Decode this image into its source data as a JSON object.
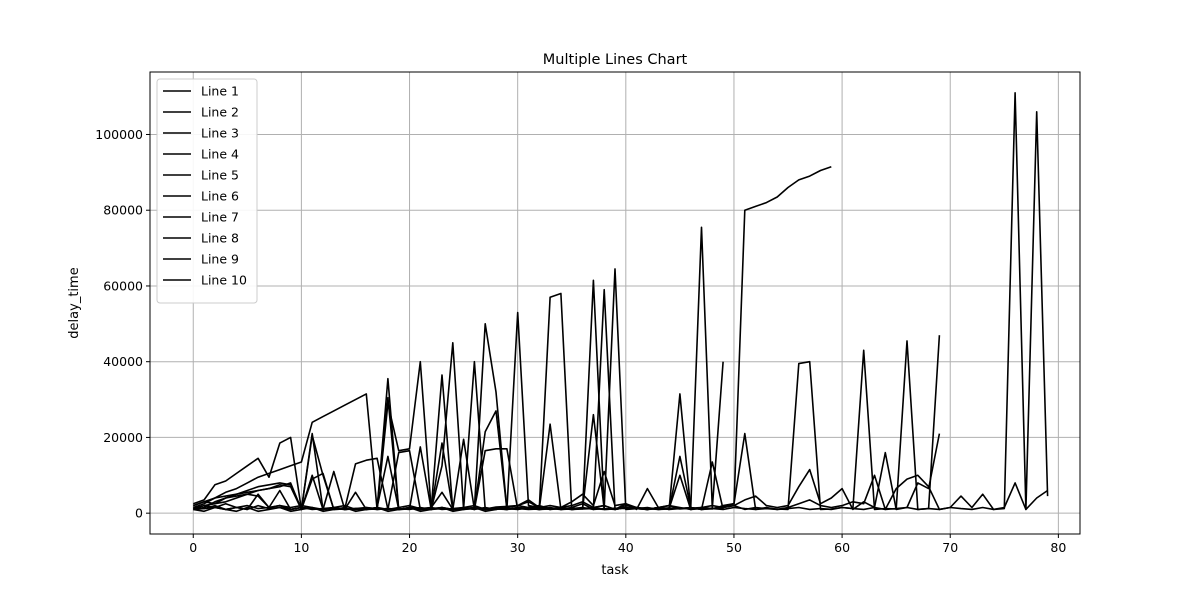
{
  "chart_data": {
    "type": "line",
    "title": "Multiple Lines Chart",
    "xlabel": "task",
    "ylabel": "delay_time",
    "xlim": [
      -4,
      82
    ],
    "ylim": [
      -5500,
      116500
    ],
    "xticks": [
      0,
      10,
      20,
      30,
      40,
      50,
      60,
      70,
      80
    ],
    "yticks": [
      0,
      20000,
      40000,
      60000,
      80000,
      100000
    ],
    "grid": true,
    "legend_position": "top-left",
    "line_color": "#000000",
    "series": [
      {
        "name": "Line 1",
        "x": [
          0,
          1,
          2,
          3,
          4,
          5,
          6,
          7,
          8,
          9,
          10,
          11,
          12,
          13,
          14,
          15,
          16,
          17,
          18,
          19,
          20,
          21,
          22,
          23,
          24,
          25,
          26,
          27,
          28,
          29,
          30,
          31,
          32,
          33,
          34,
          35,
          36,
          37,
          38,
          39,
          40,
          41,
          42,
          43,
          44,
          45,
          46,
          47,
          48,
          49,
          50,
          51,
          52,
          53,
          54,
          55,
          56,
          57,
          58,
          59
        ],
        "y": [
          1500,
          2500,
          4000,
          5500,
          6500,
          8000,
          9500,
          10500,
          11500,
          12500,
          13500,
          24000,
          25500,
          27000,
          28500,
          30000,
          31500,
          1000,
          1200,
          1000,
          1100,
          1300,
          1200,
          1500,
          1000,
          1200,
          1400,
          1100,
          1600,
          1800,
          2000,
          1500,
          1300,
          57000,
          58000,
          1000,
          1200,
          1400,
          1100,
          1300,
          1200,
          1500,
          1000,
          1200,
          1400,
          1100,
          1300,
          1500,
          1200,
          1700,
          2500,
          80000,
          81000,
          82000,
          83500,
          86000,
          88000,
          89000,
          90500,
          91500
        ]
      },
      {
        "name": "Line 2",
        "x": [
          0,
          1,
          2,
          3,
          4,
          5,
          6,
          7,
          8,
          9,
          10,
          11,
          12,
          13,
          14,
          15,
          16,
          17,
          18,
          19,
          20,
          21,
          22,
          23,
          24,
          25,
          26,
          27,
          28,
          29,
          30,
          31,
          32,
          33,
          34,
          35,
          36,
          37,
          38,
          39,
          40,
          41,
          42,
          43,
          44,
          45,
          46,
          47,
          48,
          49
        ],
        "y": [
          2500,
          3500,
          7500,
          8500,
          10500,
          12500,
          14500,
          9500,
          18500,
          20000,
          1000,
          20500,
          10000,
          1000,
          1100,
          13000,
          14000,
          14500,
          1000,
          16000,
          16500,
          1000,
          1200,
          36500,
          1000,
          1200,
          40000,
          1000,
          1200,
          1000,
          53000,
          2000,
          1500,
          1000,
          1200,
          1400,
          1100,
          61500,
          1300,
          64500,
          1000,
          1200,
          1500,
          1000,
          1200,
          1400,
          1100,
          75500,
          1300,
          40000
        ]
      },
      {
        "name": "Line 3",
        "x": [
          0,
          1,
          2,
          3,
          4,
          5,
          6,
          7,
          8,
          9,
          10,
          11,
          12,
          13,
          14,
          15,
          16,
          17,
          18,
          19,
          20,
          21,
          22,
          23,
          24,
          25,
          26,
          27,
          28,
          29
        ],
        "y": [
          2000,
          3000,
          4000,
          4500,
          5000,
          5500,
          6000,
          6500,
          7500,
          7000,
          1000,
          9000,
          10500,
          1000,
          1100,
          1000,
          1200,
          1000,
          29000,
          16500,
          17000,
          40000,
          1000,
          12500,
          45000,
          1000,
          1200,
          50000,
          32000,
          1000
        ]
      },
      {
        "name": "Line 4",
        "x": [
          0,
          1,
          2,
          3,
          4,
          5,
          6,
          7,
          8,
          9,
          10,
          11,
          12,
          13,
          14,
          15,
          16,
          17,
          18,
          19,
          20,
          21,
          22,
          23,
          24,
          25,
          26,
          27,
          28,
          29,
          30,
          31,
          32,
          33,
          34,
          35,
          36,
          37,
          38,
          39,
          40,
          41,
          42,
          43,
          44,
          45,
          46,
          47,
          48,
          49,
          50,
          51,
          52,
          53,
          54,
          55,
          56,
          57,
          58,
          59,
          60,
          61,
          62,
          63,
          64,
          65,
          66,
          67,
          68,
          69
        ],
        "y": [
          1000,
          1500,
          3000,
          4000,
          5000,
          6000,
          7000,
          7500,
          8000,
          7500,
          1000,
          10000,
          1000,
          11000,
          1000,
          1200,
          1000,
          1100,
          35500,
          1000,
          1200,
          1000,
          1100,
          1200,
          1000,
          1100,
          1200,
          1000,
          1100,
          1000,
          1500,
          1200,
          1000,
          1100,
          1200,
          1000,
          1100,
          1200,
          1000,
          1100,
          2000,
          1500,
          1200,
          1000,
          1100,
          31500,
          1000,
          1200,
          1100,
          2000,
          2500,
          21000,
          1000,
          1200,
          1100,
          1000,
          39500,
          40000,
          1000,
          1100,
          1500,
          1200,
          43000,
          1000,
          1200,
          1100,
          45500,
          1000,
          1200,
          47000
        ]
      },
      {
        "name": "Line 5",
        "x": [
          0,
          1,
          2,
          3,
          4,
          5,
          6,
          7,
          8,
          9,
          10,
          11,
          12,
          13,
          14,
          15,
          16,
          17,
          18,
          19,
          20,
          21,
          22,
          23,
          24,
          25,
          26,
          27,
          28,
          29,
          30,
          31,
          32,
          33,
          34,
          35,
          36,
          37,
          38,
          39
        ],
        "y": [
          1200,
          2000,
          2500,
          3000,
          4000,
          5000,
          6000,
          6500,
          7000,
          8000,
          1000,
          21000,
          1000,
          1200,
          1000,
          1100,
          1000,
          1200,
          30500,
          1000,
          1100,
          17500,
          1000,
          18500,
          1000,
          19500,
          1000,
          21500,
          27000,
          1000,
          1200,
          1000,
          1100,
          23500,
          1000,
          1100,
          1200,
          26000,
          1000,
          1100
        ]
      },
      {
        "name": "Line 6",
        "x": [
          0,
          1,
          2,
          3,
          4,
          5,
          6,
          7,
          8,
          9,
          10,
          11,
          12,
          13,
          14,
          15,
          16,
          17,
          18,
          19,
          20,
          21,
          22,
          23,
          24,
          25,
          26,
          27,
          28,
          29,
          30,
          31,
          32,
          33,
          34,
          35,
          36,
          37,
          38,
          39,
          40,
          41,
          42,
          43,
          44,
          45,
          46,
          47,
          48,
          49,
          50,
          51,
          52,
          53,
          54,
          55,
          56,
          57,
          58,
          59,
          60,
          61,
          62,
          63,
          64,
          65,
          66,
          67,
          68,
          69,
          70,
          71,
          72,
          73,
          74,
          75,
          76,
          77,
          78,
          79
        ],
        "y": [
          1500,
          1200,
          2000,
          1000,
          1500,
          1000,
          2000,
          1200,
          1500,
          1000,
          1500,
          1200,
          1000,
          1500,
          1000,
          1200,
          1500,
          1000,
          1200,
          1000,
          1500,
          1200,
          1000,
          1500,
          1000,
          1200,
          1500,
          1000,
          1200,
          1000,
          1500,
          1200,
          1000,
          1500,
          1000,
          1200,
          1500,
          1000,
          1200,
          1000,
          1500,
          1200,
          1000,
          1500,
          1000,
          1200,
          1500,
          1000,
          1200,
          1000,
          1500,
          1200,
          1000,
          1500,
          1000,
          1200,
          1500,
          1000,
          1200,
          1000,
          1500,
          1200,
          1000,
          1500,
          1000,
          1200,
          1500,
          1000,
          1200,
          1000,
          1500,
          1200,
          1000,
          1500,
          1000,
          1200,
          111000,
          1000,
          106000,
          4500
        ]
      },
      {
        "name": "Line 7",
        "x": [
          0,
          1,
          2,
          3,
          4,
          5,
          6,
          7,
          8,
          9,
          10,
          11,
          12,
          13,
          14,
          15,
          16,
          17,
          18,
          19,
          20,
          21,
          22,
          23,
          24,
          25,
          26,
          27,
          28,
          29,
          30,
          31,
          32,
          33,
          34,
          35,
          36,
          37,
          38,
          39,
          40,
          41,
          42,
          43,
          44,
          45,
          46,
          47,
          48,
          49,
          50,
          51,
          52,
          53,
          54,
          55,
          56,
          57,
          58,
          59,
          60,
          61,
          62,
          63,
          64,
          65,
          66,
          67,
          68,
          69,
          70,
          71,
          72,
          73,
          74,
          75,
          76,
          77,
          78,
          79
        ],
        "y": [
          1000,
          1200,
          1500,
          1000,
          1500,
          2000,
          1200,
          1500,
          2000,
          1000,
          1500,
          1000,
          1200,
          1500,
          2000,
          1000,
          1500,
          1200,
          1000,
          1500,
          2000,
          1200,
          1500,
          1000,
          1200,
          1500,
          2000,
          1000,
          1500,
          1200,
          1000,
          1500,
          2000,
          1200,
          1500,
          1000,
          1200,
          1500,
          2000,
          1000,
          1500,
          1200,
          1000,
          1500,
          2000,
          1200,
          1500,
          1000,
          1200,
          1500,
          2000,
          1000,
          1500,
          1200,
          1000,
          1500,
          2500,
          3500,
          2000,
          1500,
          2000,
          3000,
          2500,
          10000,
          1000,
          6500,
          9000,
          10000,
          7000,
          1000,
          1500,
          4500,
          1500,
          5000,
          1000,
          1500,
          8000,
          1000,
          4000,
          6000
        ]
      },
      {
        "name": "Line 8",
        "x": [
          0,
          1,
          2,
          3,
          4,
          5,
          6,
          7,
          8,
          9,
          10,
          11,
          12,
          13,
          14,
          15,
          16,
          17,
          18,
          19,
          20,
          21,
          22,
          23,
          24,
          25,
          26,
          27,
          28,
          29,
          30,
          31,
          32,
          33,
          34,
          35,
          36,
          37,
          38,
          39,
          40,
          41,
          42,
          43,
          44,
          45,
          46,
          47,
          48,
          49,
          50,
          51,
          52,
          53,
          54,
          55,
          56,
          57,
          58,
          59,
          60,
          61,
          62,
          63,
          64,
          65,
          66,
          67,
          68,
          69
        ],
        "y": [
          1000,
          500,
          1500,
          1000,
          500,
          1500,
          500,
          1000,
          1500,
          500,
          1000,
          1500,
          500,
          1000,
          1500,
          500,
          1000,
          1500,
          500,
          1000,
          1500,
          500,
          1000,
          1500,
          500,
          1000,
          1500,
          500,
          1000,
          1500,
          2000,
          3000,
          1500,
          1000,
          1500,
          2000,
          3000,
          1500,
          2000,
          1000,
          2500,
          1500,
          1000,
          1500,
          2000,
          1500,
          1000,
          1500,
          2000,
          1500,
          2000,
          3500,
          4500,
          2000,
          1500,
          2000,
          7000,
          11500,
          2500,
          4000,
          6500,
          1000,
          3000,
          1500,
          16000,
          1000,
          1500,
          8000,
          6500,
          21000
        ]
      },
      {
        "name": "Line 9",
        "x": [
          0,
          1,
          2,
          3,
          4,
          5,
          6,
          7,
          8,
          9,
          10,
          11,
          12,
          13,
          14,
          15,
          16,
          17,
          18,
          19,
          20,
          21,
          22,
          23,
          24,
          25,
          26,
          27,
          28,
          29,
          30,
          31,
          32,
          33,
          34,
          35,
          36,
          37,
          38,
          39,
          40,
          41,
          42,
          43,
          44,
          45,
          46,
          47,
          48,
          49
        ],
        "y": [
          1200,
          2000,
          1500,
          2500,
          1500,
          1000,
          5000,
          1500,
          2000,
          1500,
          2000,
          1500,
          1000,
          1500,
          1000,
          5500,
          1000,
          1500,
          15000,
          1000,
          1500,
          1000,
          1500,
          5500,
          1000,
          1500,
          1000,
          1500,
          1000,
          1500,
          2000,
          3500,
          1500,
          2000,
          1500,
          3000,
          5000,
          2000,
          11000,
          2000,
          2500,
          1000,
          6500,
          1500,
          1000,
          15000,
          1500,
          1000,
          13500,
          1000
        ]
      },
      {
        "name": "Line 10",
        "x": [
          0,
          1,
          2,
          3,
          4,
          5,
          6,
          7,
          8,
          9,
          10,
          11,
          12,
          13,
          14,
          15,
          16,
          17,
          18,
          19,
          20,
          21,
          22,
          23,
          24,
          25,
          26,
          27,
          28,
          29,
          30,
          31,
          32,
          33,
          34,
          35,
          36,
          37,
          38,
          39,
          40,
          41,
          42,
          43,
          44,
          45,
          46,
          47,
          48,
          49
        ],
        "y": [
          2000,
          3000,
          2500,
          4000,
          4500,
          5000,
          4500,
          1500,
          6000,
          1000,
          1500,
          1200,
          1000,
          1500,
          1000,
          1200,
          1000,
          1500,
          1000,
          1200,
          1000,
          1500,
          1000,
          1200,
          1000,
          1500,
          1000,
          16500,
          17000,
          17000,
          1000,
          1500,
          1000,
          1200,
          1000,
          1500,
          2500,
          1000,
          59000,
          1000,
          1500,
          1200,
          1000,
          1500,
          1200,
          10000,
          1000,
          1500,
          1200,
          1500
        ]
      }
    ]
  }
}
